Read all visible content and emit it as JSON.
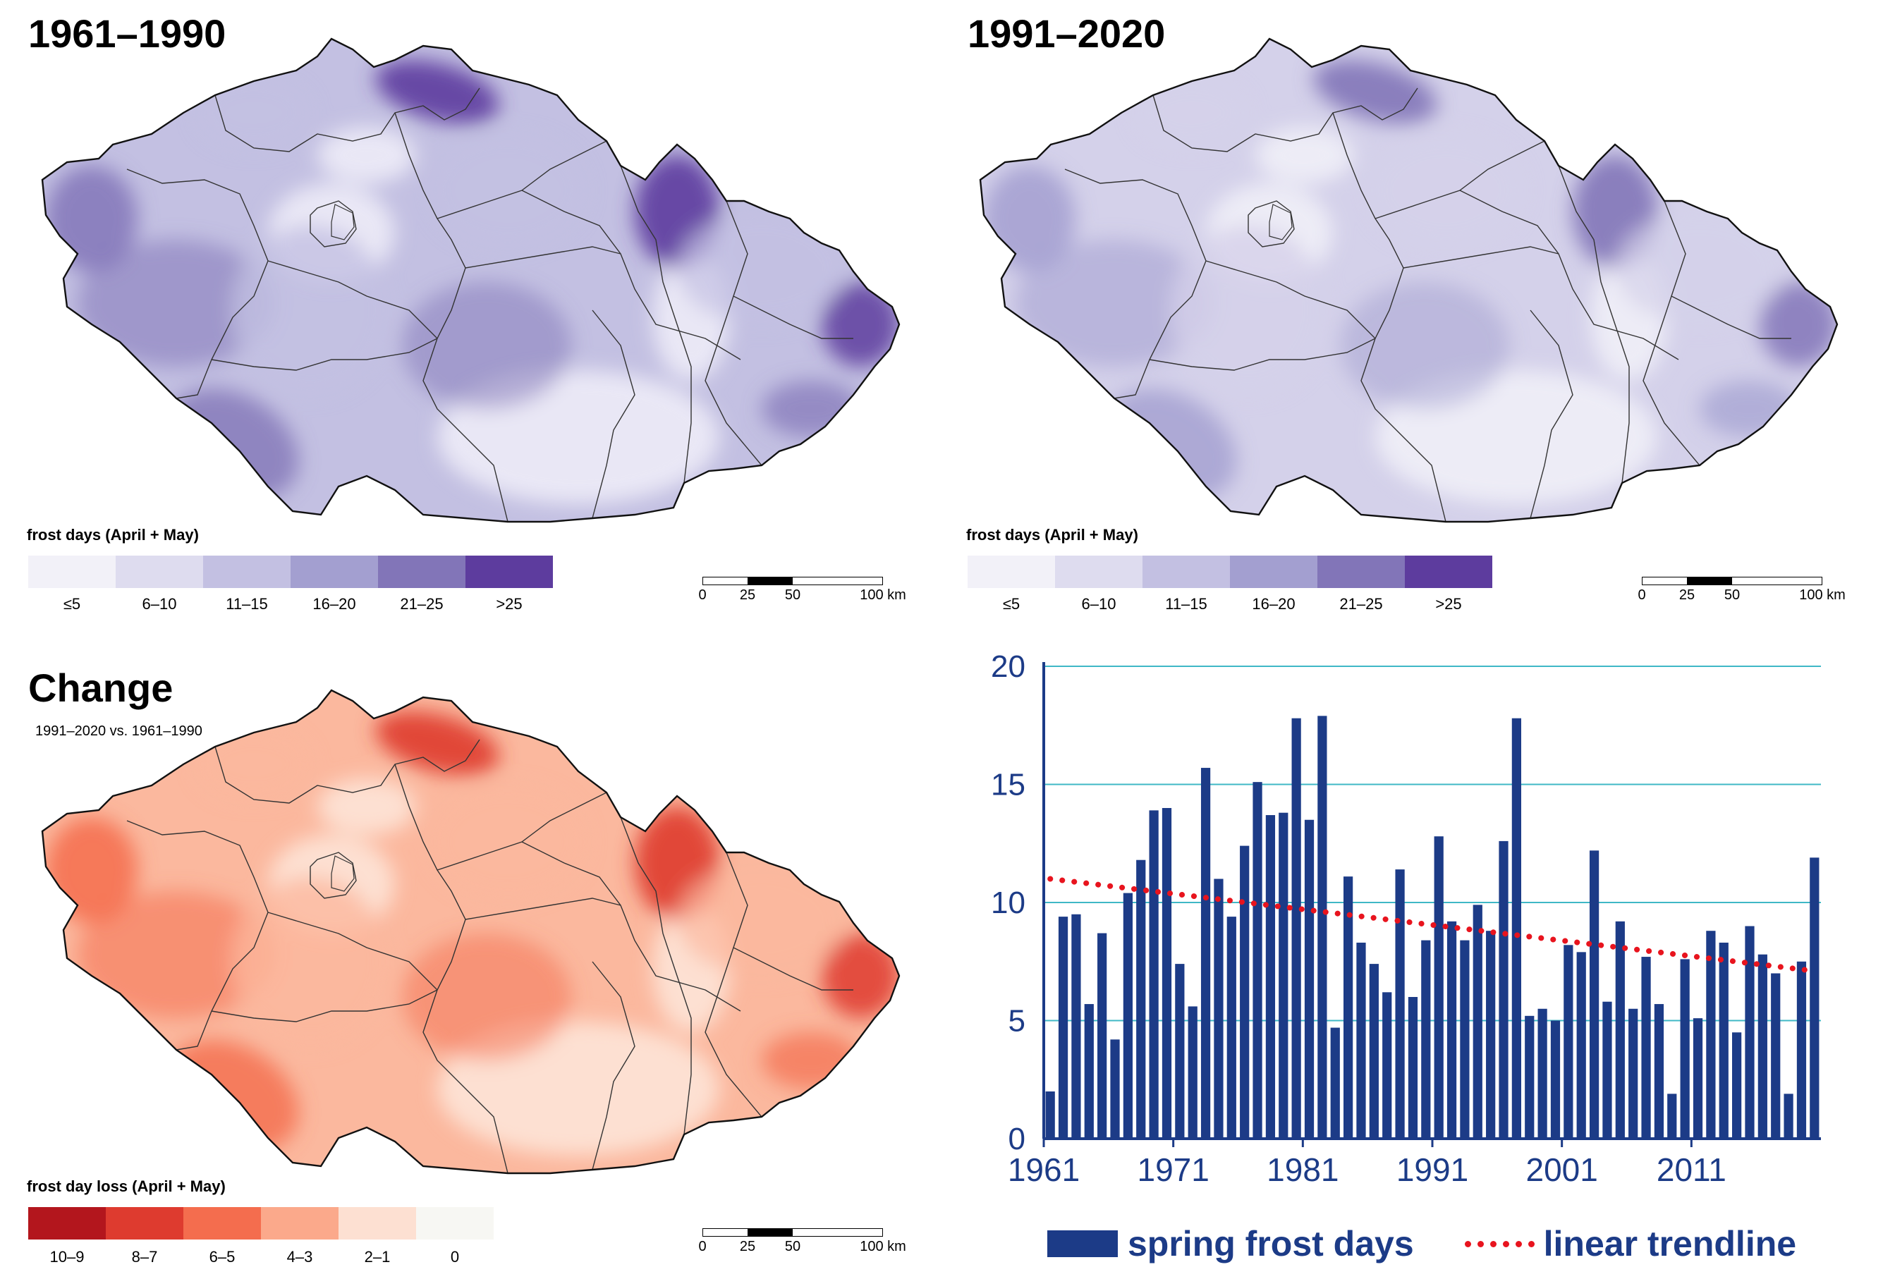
{
  "panels": {
    "period1": {
      "title": "1961–1990",
      "legend_title": "frost days (April + May)",
      "legend": [
        {
          "label": "≤5",
          "color": "#f2f1f8"
        },
        {
          "label": "6–10",
          "color": "#dedcef"
        },
        {
          "label": "11–15",
          "color": "#c3c0e2"
        },
        {
          "label": "16–20",
          "color": "#a39fd0"
        },
        {
          "label": "21–25",
          "color": "#8275b8"
        },
        {
          "label": ">25",
          "color": "#5d3c9e"
        }
      ],
      "map_colors": {
        "low": "#e9e7f5",
        "mid": "#c3c0e2",
        "high": "#8275b8",
        "peak": "#5d3c9e"
      },
      "scale": {
        "ticks": [
          "0",
          "25",
          "50",
          "100 km"
        ]
      }
    },
    "period2": {
      "title": "1991–2020",
      "legend_title": "frost days (April + May)",
      "legend": [
        {
          "label": "≤5",
          "color": "#f2f1f8"
        },
        {
          "label": "6–10",
          "color": "#dedcef"
        },
        {
          "label": "11–15",
          "color": "#c3c0e2"
        },
        {
          "label": "16–20",
          "color": "#a39fd0"
        },
        {
          "label": "21–25",
          "color": "#8275b8"
        },
        {
          "label": ">25",
          "color": "#5d3c9e"
        }
      ],
      "map_colors": {
        "low": "#edecf6",
        "mid": "#d4d1ea",
        "high": "#a39fd0",
        "peak": "#8275b8"
      },
      "scale": {
        "ticks": [
          "0",
          "25",
          "50",
          "100 km"
        ]
      }
    },
    "change": {
      "title": "Change",
      "subtitle": "1991–2020 vs. 1961–1990",
      "legend_title": "frost day loss (April + May)",
      "legend": [
        {
          "label": "10–9",
          "color": "#b3161d"
        },
        {
          "label": "8–7",
          "color": "#de3b2f"
        },
        {
          "label": "6–5",
          "color": "#f46d4e"
        },
        {
          "label": "4–3",
          "color": "#fba98b"
        },
        {
          "label": "2–1",
          "color": "#fde0d2"
        },
        {
          "label": "0",
          "color": "#f7f7f3"
        }
      ],
      "map_colors": {
        "low": "#fde0d2",
        "mid": "#fbb89e",
        "high": "#f46d4e",
        "peak": "#de3b2f"
      },
      "scale": {
        "ticks": [
          "0",
          "25",
          "50",
          "100 km"
        ]
      }
    }
  },
  "chart_data": {
    "type": "bar",
    "title": "",
    "xlabel": "",
    "ylabel": "",
    "x": [
      1961,
      1962,
      1963,
      1964,
      1965,
      1966,
      1967,
      1968,
      1969,
      1970,
      1971,
      1972,
      1973,
      1974,
      1975,
      1976,
      1977,
      1978,
      1979,
      1980,
      1981,
      1982,
      1983,
      1984,
      1985,
      1986,
      1987,
      1988,
      1989,
      1990,
      1991,
      1992,
      1993,
      1994,
      1995,
      1996,
      1997,
      1998,
      1999,
      2000,
      2001,
      2002,
      2003,
      2004,
      2005,
      2006,
      2007,
      2008,
      2009,
      2010,
      2011,
      2012,
      2013,
      2014,
      2015,
      2016,
      2017,
      2018,
      2019,
      2020
    ],
    "series": [
      {
        "name": "spring frost days",
        "color": "#1c3b87",
        "values": [
          2,
          9.4,
          9.5,
          5.7,
          8.7,
          4.2,
          10.4,
          11.8,
          13.9,
          14,
          7.4,
          5.6,
          15.7,
          11,
          9.4,
          12.4,
          15.1,
          13.7,
          13.8,
          17.8,
          13.5,
          17.9,
          4.7,
          11.1,
          8.3,
          7.4,
          6.2,
          11.4,
          6,
          8.4,
          12.8,
          9.2,
          8.4,
          9.9,
          8.8,
          12.6,
          17.8,
          5.2,
          5.5,
          5,
          8.2,
          7.9,
          12.2,
          5.8,
          9.2,
          5.5,
          7.7,
          5.7,
          1.9,
          7.6,
          5.1,
          8.8,
          8.3,
          4.5,
          9,
          7.8,
          7,
          1.9,
          7.5,
          11.9
        ]
      },
      {
        "name": "linear trendline",
        "color": "#e8141e",
        "style": "dotted",
        "start": 11.0,
        "end": 7.1
      }
    ],
    "ylim": [
      0,
      20
    ],
    "yticks": [
      0,
      5,
      10,
      15,
      20
    ],
    "xtick_labels": [
      "1961",
      "1971",
      "1981",
      "1991",
      "2001",
      "2011"
    ],
    "colors": {
      "axis": "#1c3b87",
      "grid": "#3fb8c6"
    }
  }
}
